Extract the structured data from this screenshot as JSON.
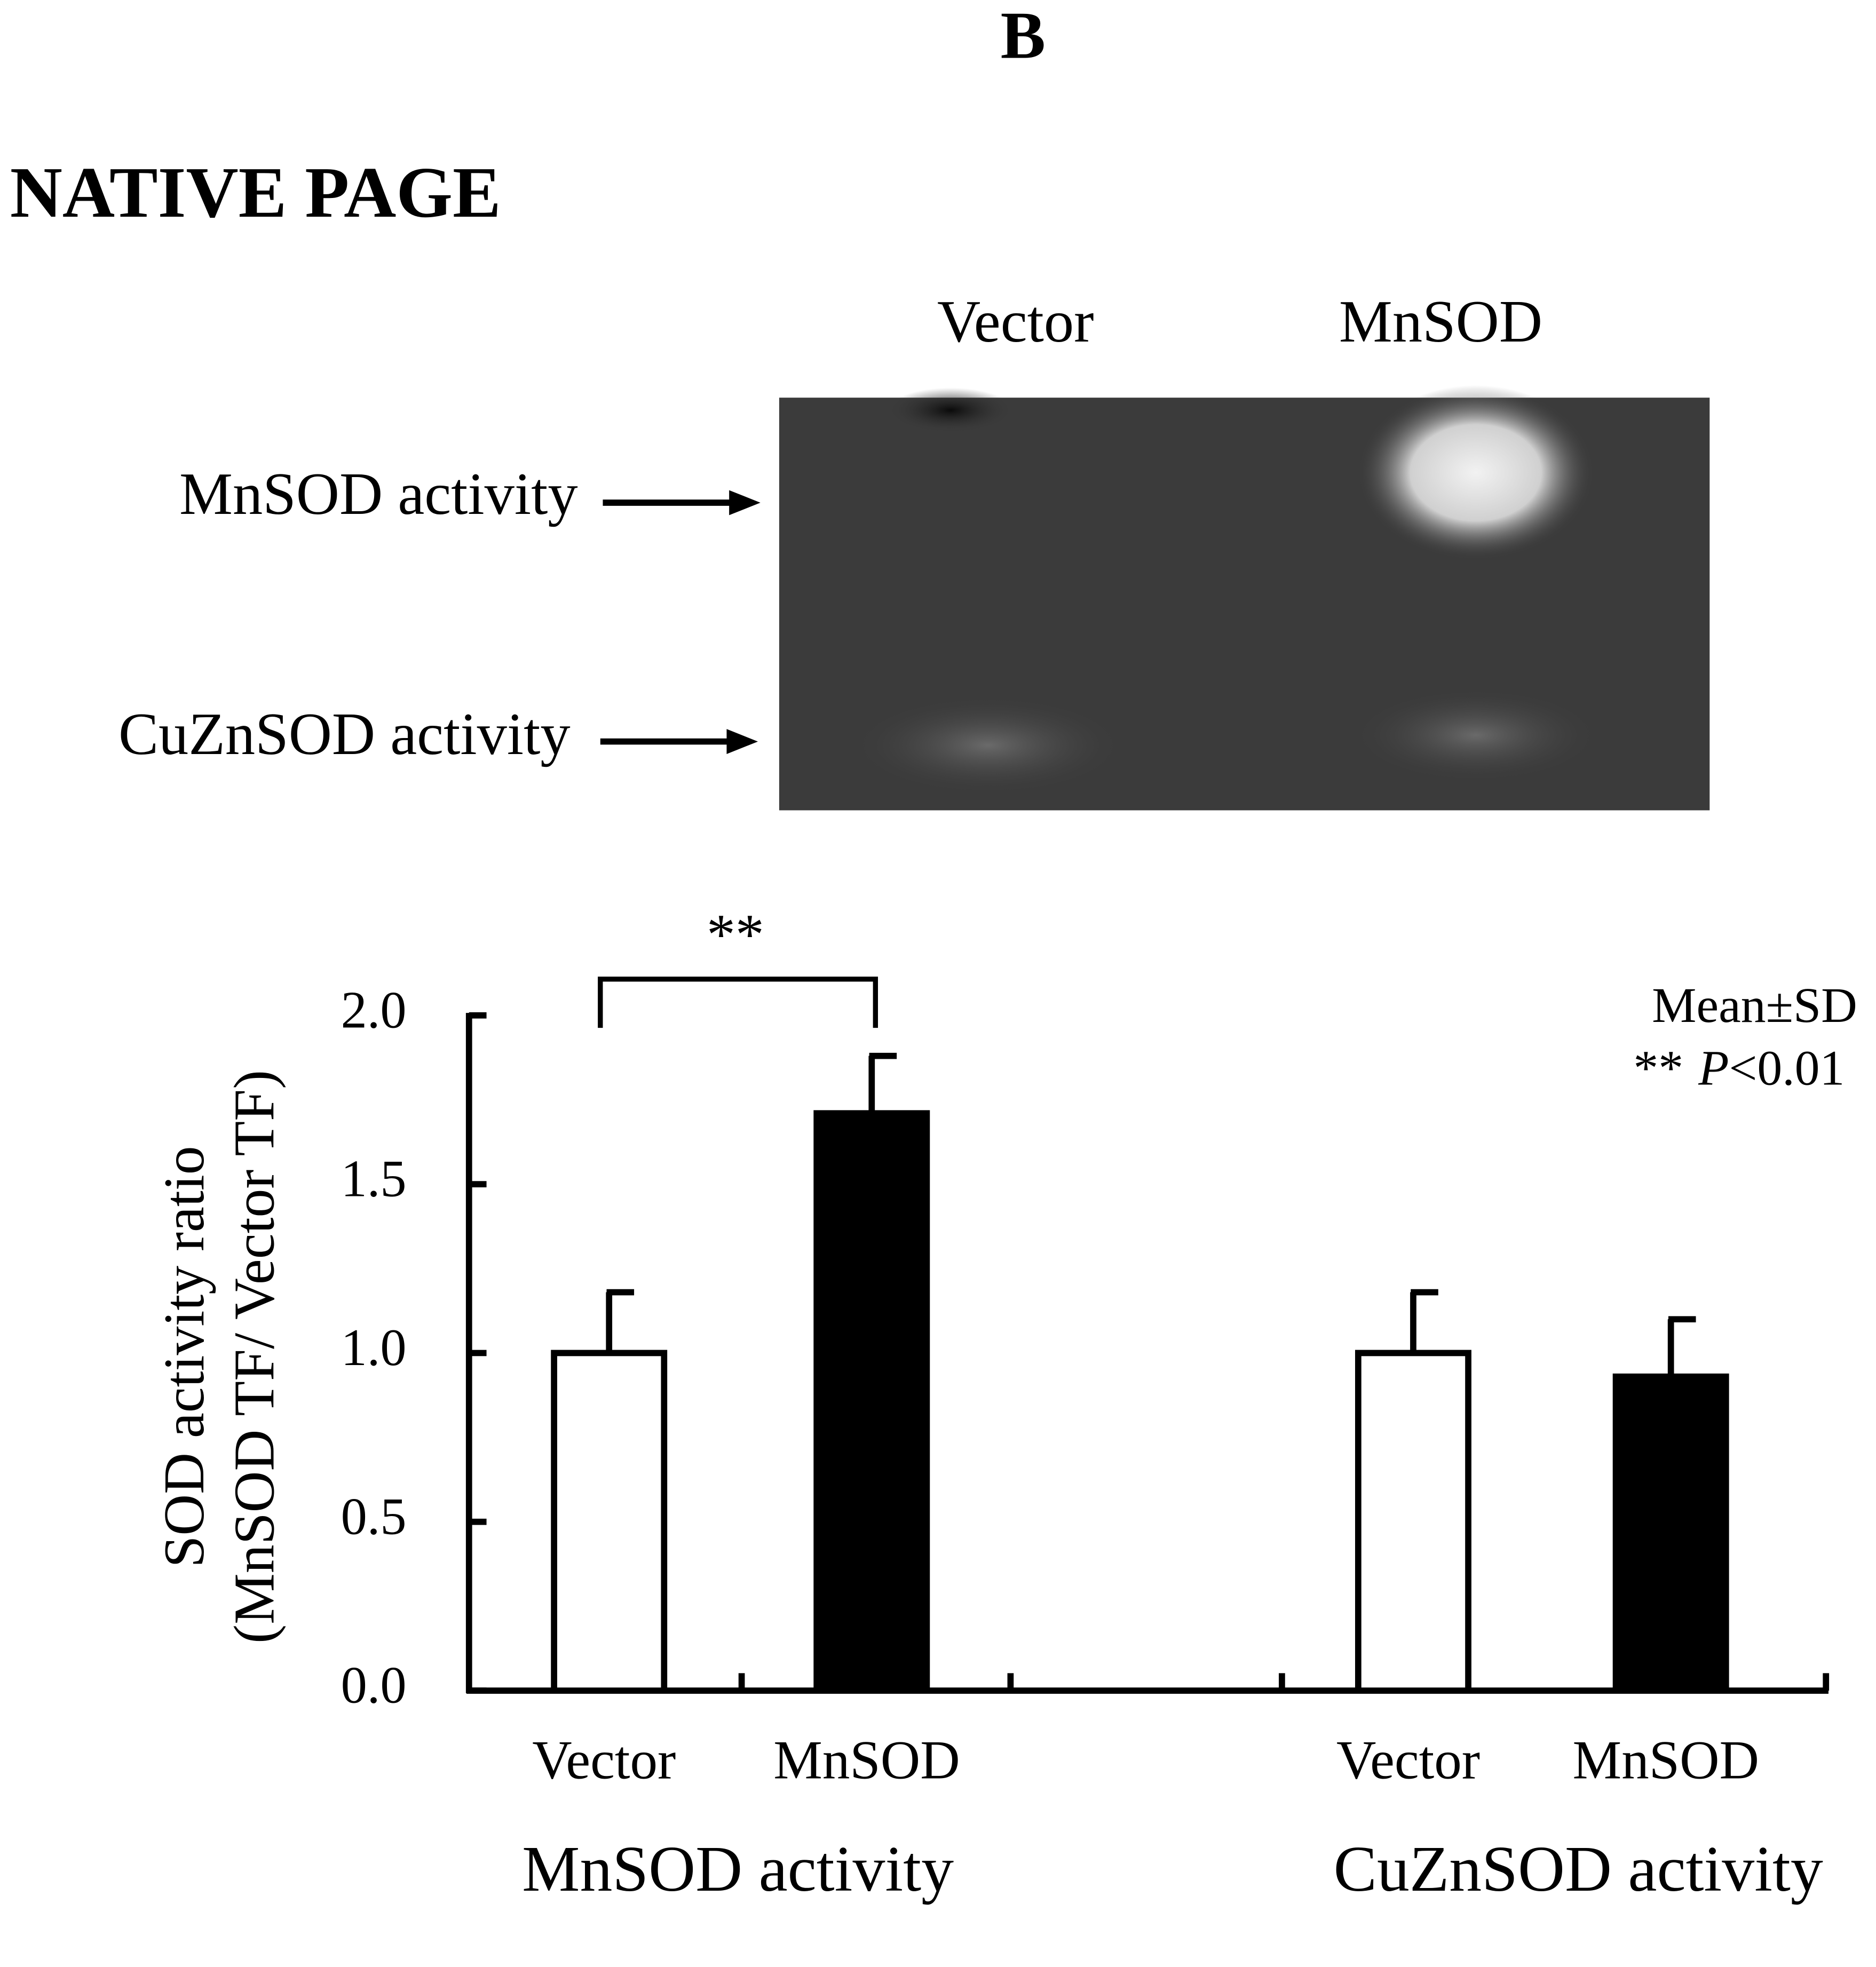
{
  "panel_label": "B",
  "gel": {
    "title": "NATIVE PAGE",
    "lanes": [
      "Vector",
      "MnSOD"
    ],
    "bands": [
      "MnSOD activity",
      "CuZnSOD activity"
    ]
  },
  "chart_data": {
    "type": "bar",
    "categories": [
      "MnSOD activity",
      "CuZnSOD activity"
    ],
    "series": [
      {
        "name": "Vector",
        "color": "#ffffff",
        "values": [
          1.0,
          1.0
        ],
        "errors": [
          0.18,
          0.18
        ]
      },
      {
        "name": "MnSOD",
        "color": "#000000",
        "values": [
          1.71,
          0.93
        ],
        "errors": [
          0.17,
          0.17
        ]
      }
    ],
    "y_label": [
      "SOD activity ratio",
      "(MnSOD TF/ Vector TF)"
    ],
    "ylim": [
      0,
      2
    ],
    "yticks": [
      {
        "value": 0,
        "label": "0.0"
      },
      {
        "value": 0.5,
        "label": "0.5"
      },
      {
        "value": 1,
        "label": "1.0"
      },
      {
        "value": 1.5,
        "label": "1.5"
      },
      {
        "value": 2,
        "label": "2.0"
      }
    ],
    "significance_label": "**",
    "notes": {
      "summary": "Mean±SD",
      "marker": "**",
      "p": "P",
      "threshold": "<0.01"
    }
  }
}
